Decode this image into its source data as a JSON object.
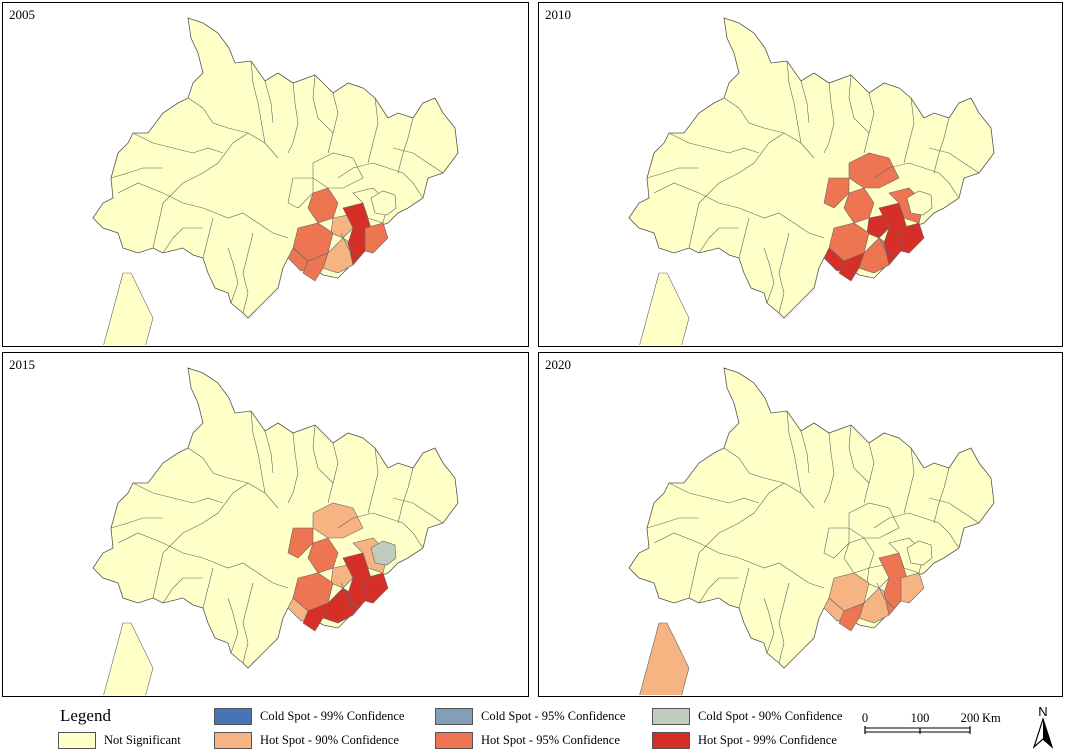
{
  "panels": [
    {
      "year": "2005",
      "hot": {
        "c1": "hs95",
        "c2": "hs90",
        "c3": "hs95",
        "c4": "hs90",
        "c5": "hs95",
        "c6": "hs99",
        "c7": "ns",
        "c8": "ns",
        "c9": "hs95",
        "c10": "hs95",
        "c11": "ns",
        "w": "ns",
        "gray": "ns"
      }
    },
    {
      "year": "2010",
      "hot": {
        "c1": "hs95",
        "c2": "hs99",
        "c3": "hs95",
        "c4": "hs95",
        "c5": "hs99",
        "c6": "hs99",
        "c7": "hs95",
        "c8": "hs95",
        "c9": "hs99",
        "c10": "hs99",
        "c11": "hs95",
        "w": "ns",
        "gray": "ns"
      }
    },
    {
      "year": "2015",
      "hot": {
        "c1": "hs95",
        "c2": "hs90",
        "c3": "hs95",
        "c4": "hs99",
        "c5": "hs90",
        "c6": "hs99",
        "c7": "hs90",
        "c8": "hs95",
        "c9": "hs99",
        "c10": "hs99",
        "c11": "hs90",
        "w": "ns",
        "gray": "cs90"
      }
    },
    {
      "year": "2020",
      "hot": {
        "c1": "ns",
        "c2": "ns",
        "c3": "hs90",
        "c4": "hs90",
        "c5": "hs90",
        "c6": "hs95",
        "c7": "ns",
        "c8": "ns",
        "c9": "hs95",
        "c10": "hs90",
        "c11": "ns",
        "w": "hs90",
        "gray": "ns"
      }
    }
  ],
  "legend": {
    "title": "Legend",
    "items": [
      {
        "key": "ns",
        "label": "Not Significant",
        "color": "#ffffc8"
      },
      {
        "key": "cs99",
        "label": "Cold Spot - 99% Confidence",
        "color": "#4575b5"
      },
      {
        "key": "hs90",
        "label": "Hot Spot - 90% Confidence",
        "color": "#f5b482"
      },
      {
        "key": "cs95",
        "label": "Cold Spot - 95% Confidence",
        "color": "#849eba"
      },
      {
        "key": "hs95",
        "label": "Hot Spot - 95% Confidence",
        "color": "#ed7551"
      },
      {
        "key": "cs90",
        "label": "Cold Spot - 90% Confidence",
        "color": "#c0ccbe"
      },
      {
        "key": "hs99",
        "label": "Hot Spot - 99% Confidence",
        "color": "#d62f27"
      }
    ]
  },
  "scale": {
    "ticks": [
      "0",
      "100",
      "200"
    ],
    "unit": "Km"
  },
  "north": {
    "label": "N"
  }
}
